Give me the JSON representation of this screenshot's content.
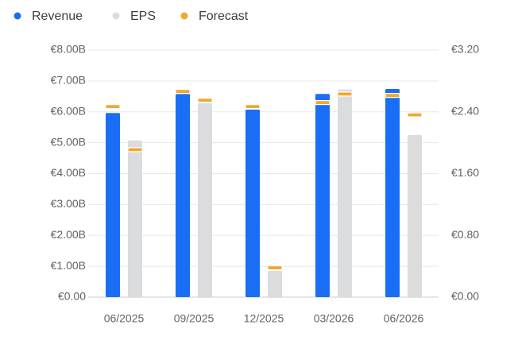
{
  "chart_data": {
    "type": "bar",
    "categories": [
      "06/2025",
      "09/2025",
      "12/2025",
      "03/2026",
      "06/2026"
    ],
    "series": [
      {
        "name": "Revenue",
        "color": "#1a6ef5",
        "values": [
          5.96,
          6.58,
          6.07,
          6.58,
          6.74
        ],
        "forecast_values": [
          6.17,
          6.66,
          6.17,
          6.3,
          6.53
        ]
      },
      {
        "name": "EPS",
        "color": "#dadcde",
        "axis": "y2",
        "values": [
          2.03,
          2.51,
          0.34,
          2.69,
          2.1
        ],
        "forecast_values": [
          1.91,
          2.55,
          0.38,
          2.63,
          2.36
        ]
      }
    ],
    "forecast": {
      "name": "Forecast",
      "color": "#f3a72d"
    },
    "ylim": [
      0,
      8
    ],
    "yticks": [
      {
        "value": 0,
        "label": "€0.00"
      },
      {
        "value": 1,
        "label": "€1.00B"
      },
      {
        "value": 2,
        "label": "€2.00B"
      },
      {
        "value": 3,
        "label": "€3.00B"
      },
      {
        "value": 4,
        "label": "€4.00B"
      },
      {
        "value": 5,
        "label": "€5.00B"
      },
      {
        "value": 6,
        "label": "€6.00B"
      },
      {
        "value": 7,
        "label": "€7.00B"
      },
      {
        "value": 8,
        "label": "€8.00B"
      }
    ],
    "y2lim": [
      0,
      3.2
    ],
    "y2ticks": [
      {
        "value": 0,
        "label": "€0.00"
      },
      {
        "value": 0.8,
        "label": "€0.80"
      },
      {
        "value": 1.6,
        "label": "€1.60"
      },
      {
        "value": 2.4,
        "label": "€2.40"
      },
      {
        "value": 3.2,
        "label": "€3.20"
      }
    ],
    "grid": true
  }
}
